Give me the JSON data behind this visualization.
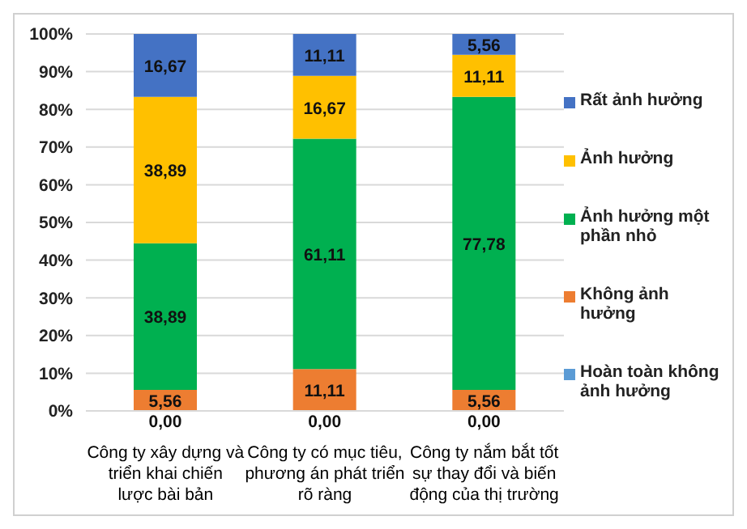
{
  "chart_data": {
    "type": "bar",
    "stacked": true,
    "categories": [
      "Công ty xây dựng và triển khai chiến lược bài bản",
      "Công ty có mục tiêu, phương án phát triển rõ ràng",
      "Công ty nắm bắt tốt sự thay đổi và biến động của thị trường"
    ],
    "series": [
      {
        "name": "Hoàn toàn không ảnh hưởng",
        "color": "#5b9bd5",
        "values": [
          0,
          0,
          0
        ],
        "value_labels": [
          "0,00",
          "0,00",
          "0,00"
        ]
      },
      {
        "name": "Không ảnh hưởng",
        "color": "#ed7d31",
        "values": [
          5.56,
          11.11,
          5.56
        ],
        "value_labels": [
          "5,56",
          "11,11",
          "5,56"
        ]
      },
      {
        "name": "Ảnh hưởng một phần nhỏ",
        "color": "#00b050",
        "values": [
          38.89,
          61.11,
          77.78
        ],
        "value_labels": [
          "38,89",
          "61,11",
          "77,78"
        ]
      },
      {
        "name": "Ảnh hưởng",
        "color": "#ffc000",
        "values": [
          38.89,
          16.67,
          11.11
        ],
        "value_labels": [
          "38,89",
          "16,67",
          "11,11"
        ]
      },
      {
        "name": "Rất ảnh hưởng",
        "color": "#4472c4",
        "values": [
          16.67,
          11.11,
          5.56
        ],
        "value_labels": [
          "16,67",
          "11,11",
          "5,56"
        ]
      }
    ],
    "ylim": [
      0,
      100
    ],
    "yticks": [
      {
        "value": 0,
        "label": "0%"
      },
      {
        "value": 10,
        "label": "10%"
      },
      {
        "value": 20,
        "label": "20%"
      },
      {
        "value": 30,
        "label": "30%"
      },
      {
        "value": 40,
        "label": "40%"
      },
      {
        "value": 50,
        "label": "50%"
      },
      {
        "value": 60,
        "label": "60%"
      },
      {
        "value": 70,
        "label": "70%"
      },
      {
        "value": 80,
        "label": "80%"
      },
      {
        "value": 90,
        "label": "90%"
      },
      {
        "value": 100,
        "label": "100%"
      }
    ],
    "grid": "y",
    "legend": "right"
  }
}
